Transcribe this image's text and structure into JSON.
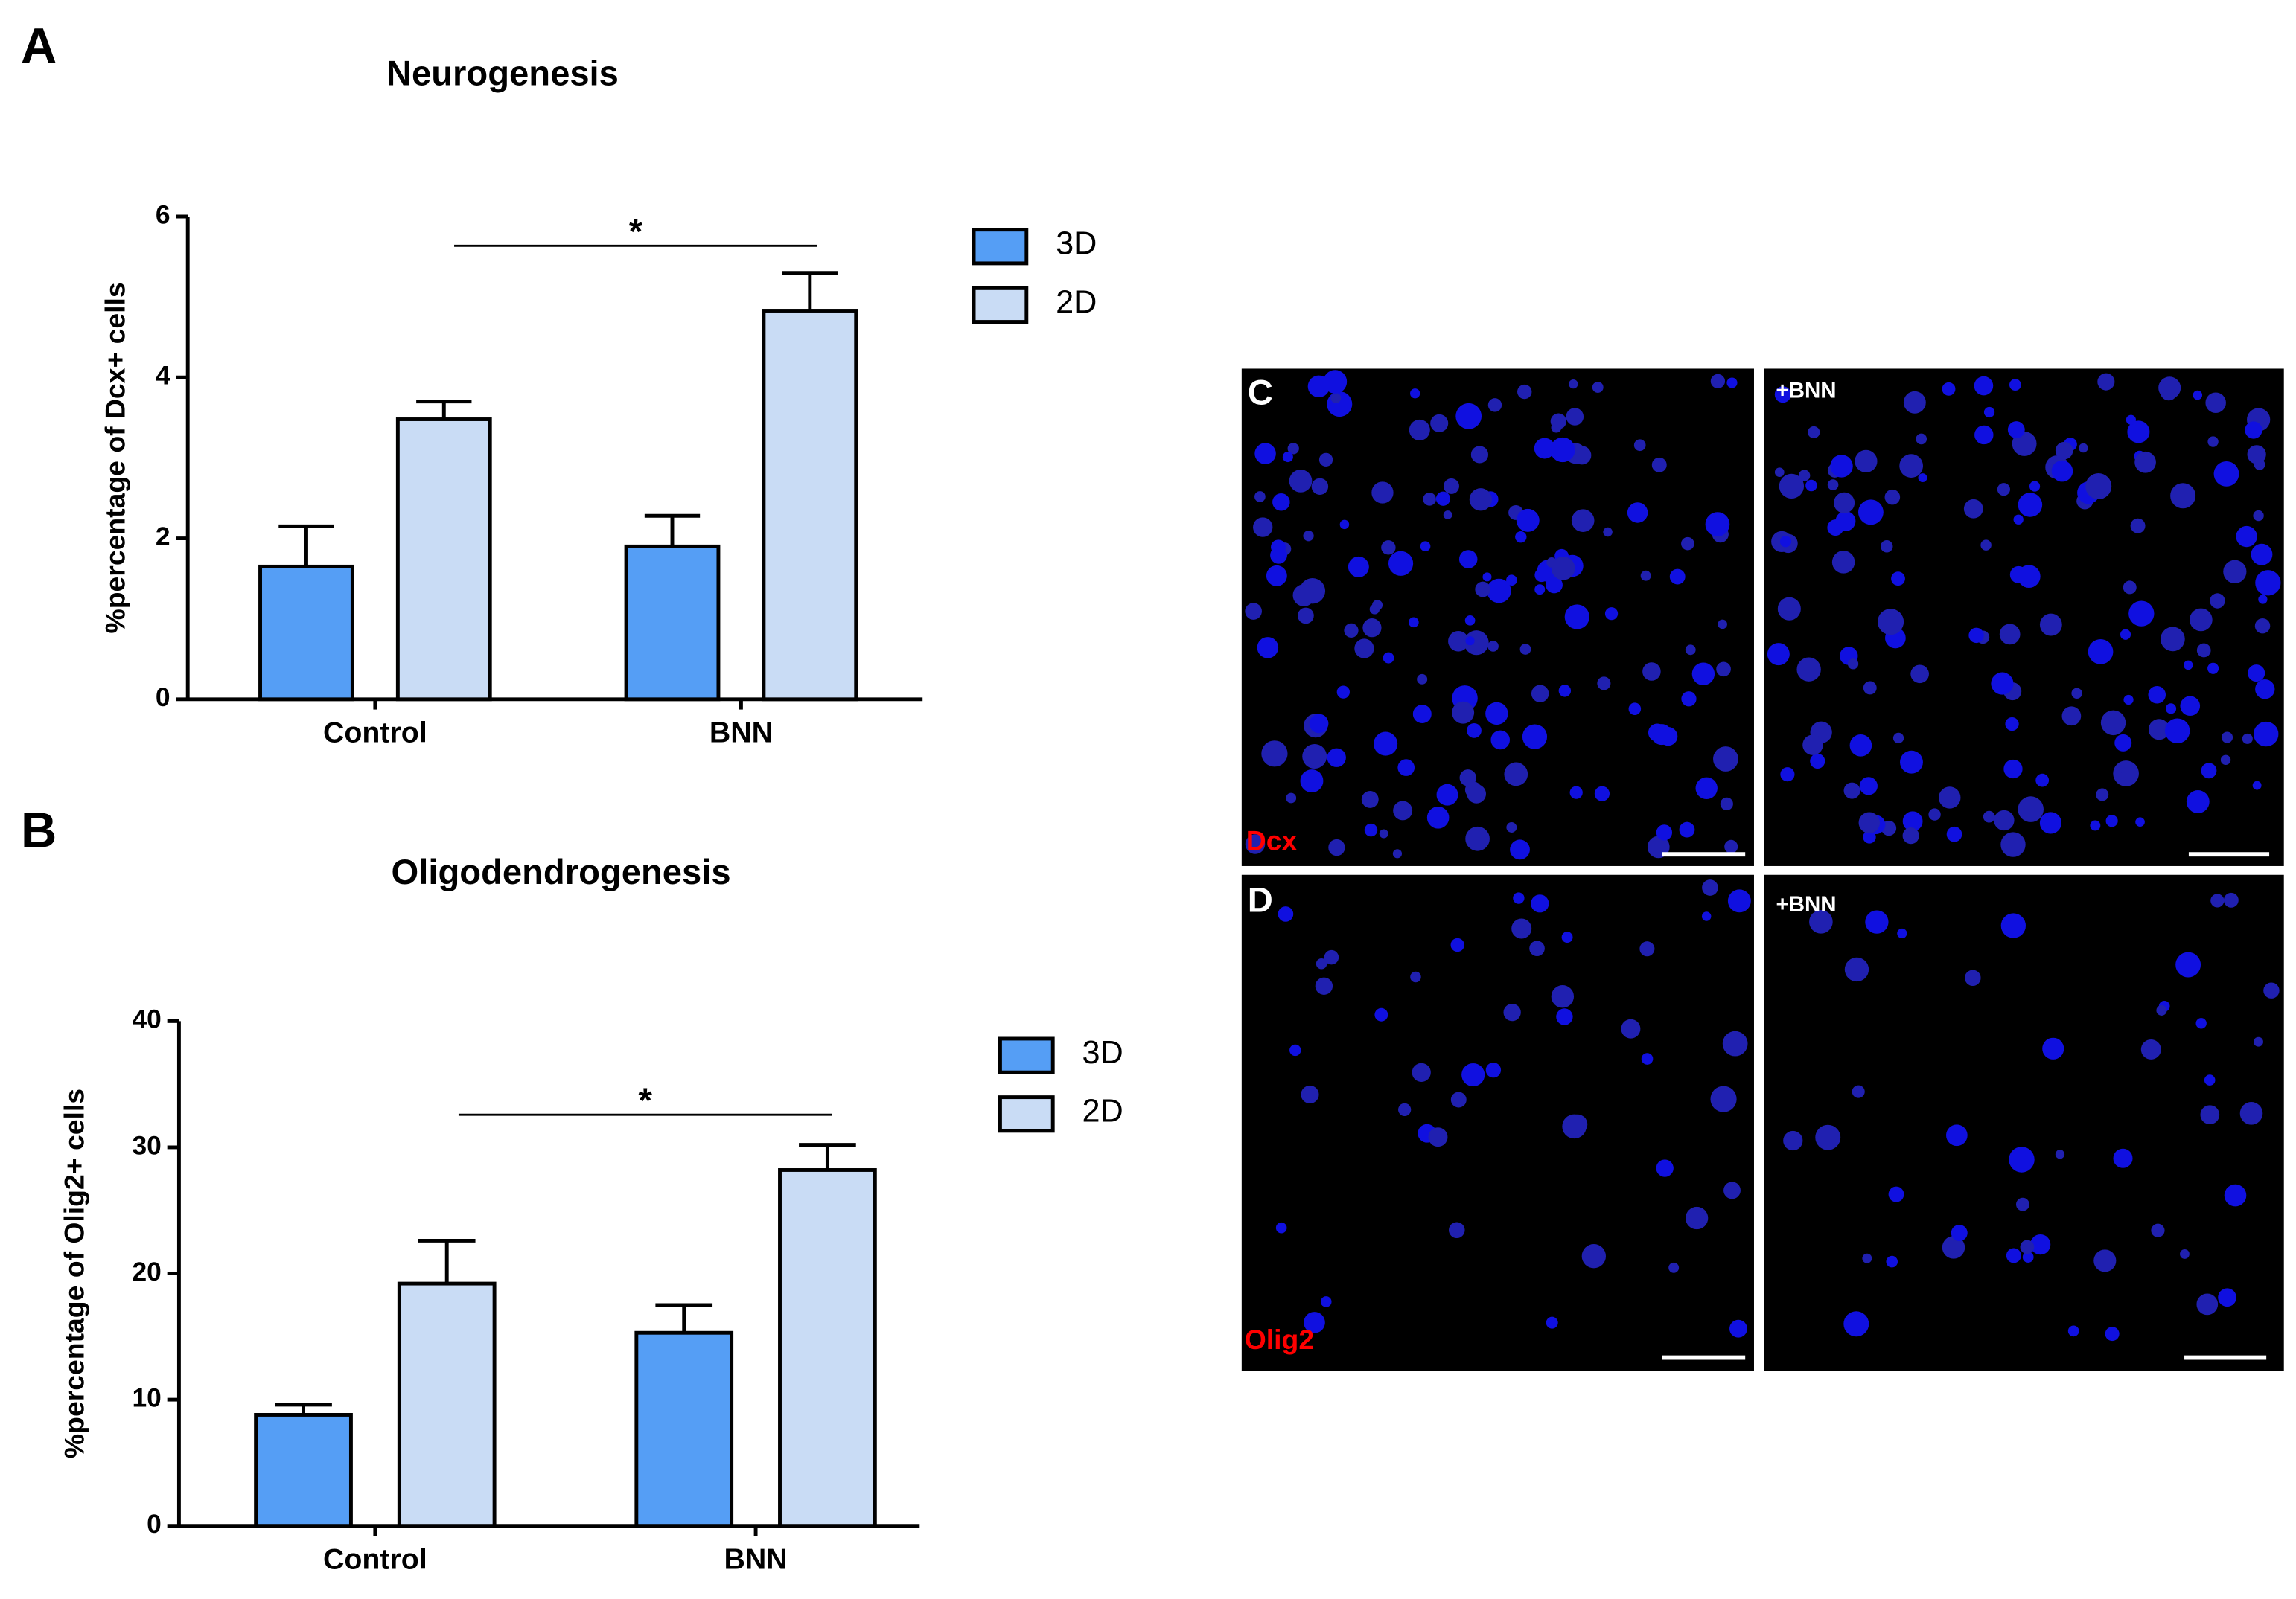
{
  "panels": {
    "a": "A",
    "b": "B",
    "c": "C",
    "d": "D",
    "c_treated": "+BNN",
    "d_treated": "+BNN",
    "c_marker": "Dcx",
    "d_marker": "Olig2"
  },
  "chart_data": [
    {
      "type": "bar",
      "title": "Neurogenesis",
      "y_label": "%percentage of Dcx+ cells",
      "categories": [
        "Control",
        "BNN"
      ],
      "series": [
        {
          "name": "3D",
          "color": "#559ef5",
          "values": [
            1.65,
            1.9
          ],
          "errors": [
            0.5,
            0.38
          ]
        },
        {
          "name": "2D",
          "color": "#c9dcf5",
          "values": [
            3.48,
            4.83
          ],
          "errors": [
            0.22,
            0.47
          ]
        }
      ],
      "ylim": [
        0,
        6
      ],
      "yticks": [
        0,
        2,
        4,
        6
      ],
      "annotation": "*"
    },
    {
      "type": "bar",
      "title": "Oligodendrogenesis",
      "y_label": "%percentage of Olig2+ cells",
      "categories": [
        "Control",
        "BNN"
      ],
      "series": [
        {
          "name": "3D",
          "color": "#559ef5",
          "values": [
            8.8,
            15.3
          ],
          "errors": [
            0.8,
            2.2
          ]
        },
        {
          "name": "2D",
          "color": "#c9dcf5",
          "values": [
            19.2,
            28.2
          ],
          "errors": [
            3.4,
            2.0
          ]
        }
      ],
      "ylim": [
        0,
        40
      ],
      "yticks": [
        0,
        10,
        20,
        30,
        40
      ],
      "annotation": "*"
    }
  ]
}
